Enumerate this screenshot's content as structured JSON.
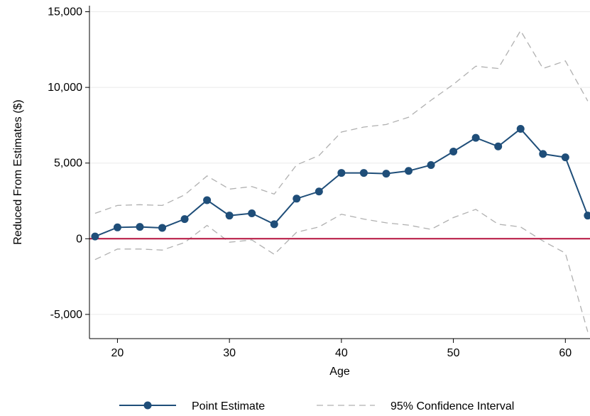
{
  "chart_data": {
    "type": "line",
    "xlabel": "Age",
    "ylabel": "Reduced From Estimates ($)",
    "xlim": [
      17.5,
      62.2
    ],
    "ylim": [
      -6600,
      15400
    ],
    "xticks": [
      20,
      30,
      40,
      50,
      60
    ],
    "yticks": [
      -5000,
      0,
      5000,
      10000,
      15000
    ],
    "ytick_labels": [
      "-5,000",
      "0",
      "5,000",
      "10,000",
      "15,000"
    ],
    "grid": "horizontal",
    "reference_line": {
      "y": 0,
      "color": "#b5123e"
    },
    "x": [
      18,
      20,
      22,
      24,
      26,
      28,
      30,
      32,
      34,
      36,
      38,
      40,
      42,
      44,
      46,
      48,
      50,
      52,
      54,
      56,
      58,
      60,
      62
    ],
    "series": [
      {
        "name": "Point Estimate",
        "style": "solid-markers",
        "color": "#1f4e79",
        "values": [
          150,
          750,
          780,
          720,
          1300,
          2550,
          1530,
          1680,
          960,
          2650,
          3120,
          4350,
          4350,
          4300,
          4480,
          4870,
          5760,
          6670,
          6100,
          7260,
          5600,
          5380,
          1530
        ]
      },
      {
        "name": "95% Confidence Interval",
        "style": "dashed",
        "color": "#b0b0b0",
        "values": [
          1680,
          2200,
          2250,
          2200,
          2900,
          4150,
          3280,
          3450,
          2950,
          4880,
          5500,
          7050,
          7380,
          7550,
          8030,
          9150,
          10200,
          11400,
          11250,
          13750,
          11250,
          11750,
          9100
        ]
      },
      {
        "name": "",
        "style": "dashed",
        "color": "#b0b0b0",
        "values": [
          -1380,
          -680,
          -680,
          -750,
          -250,
          880,
          -230,
          -80,
          -1030,
          430,
          780,
          1620,
          1300,
          1050,
          900,
          620,
          1400,
          1940,
          960,
          780,
          -150,
          -950,
          -6150
        ]
      }
    ],
    "legend": {
      "placement": "bottom",
      "entries": [
        "Point Estimate",
        "95% Confidence Interval"
      ]
    }
  }
}
